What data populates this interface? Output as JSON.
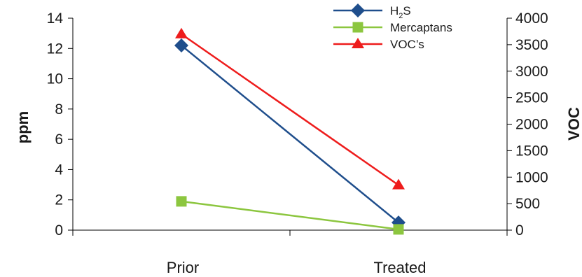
{
  "chart_data": {
    "type": "line",
    "categories": [
      "Prior",
      "Treated"
    ],
    "left_axis": {
      "label": "ppm",
      "ylim": [
        0,
        14
      ],
      "ticks": [
        "0",
        "2",
        "4",
        "6",
        "8",
        "10",
        "12",
        "14"
      ]
    },
    "right_axis": {
      "label": "VOC",
      "ylim": [
        0,
        4000
      ],
      "ticks": [
        "0",
        "500",
        "1000",
        "1500",
        "2000",
        "2500",
        "3000",
        "3500",
        "4000"
      ]
    },
    "series": [
      {
        "name": "H2S",
        "name_main": "H",
        "name_sub": "2",
        "name_tail": "S",
        "axis": "left",
        "values": [
          12.2,
          0.5
        ],
        "color": "#1f4e8c",
        "marker": "diamond"
      },
      {
        "name": "Mercaptans",
        "axis": "left",
        "values": [
          1.9,
          0.05
        ],
        "color": "#8cc63f",
        "marker": "square"
      },
      {
        "name": "VOC’s",
        "axis": "right",
        "values": [
          3700,
          850
        ],
        "color": "#ee1c1c",
        "marker": "triangle"
      }
    ],
    "legend_position": "top-right",
    "grid": false
  }
}
